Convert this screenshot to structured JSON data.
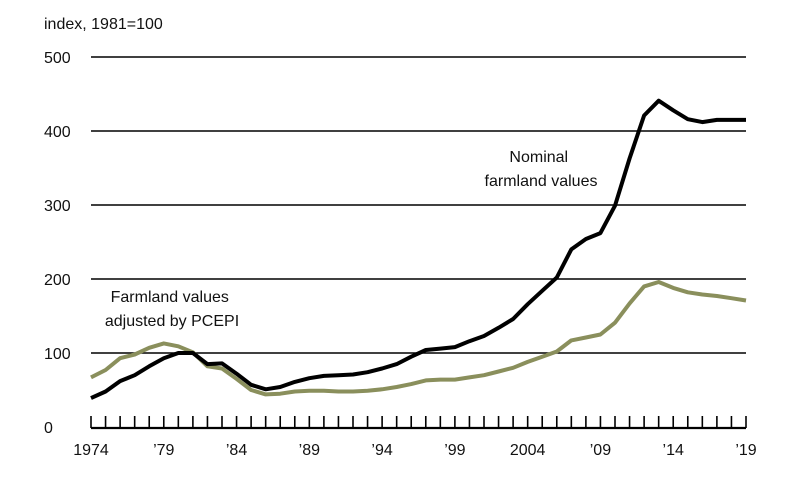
{
  "chart_data": {
    "type": "line",
    "title": "",
    "ylabel": "index, 1981=100",
    "xlabel": "",
    "ylim": [
      0,
      500
    ],
    "xlim": [
      1974,
      2019
    ],
    "yticks": [
      0,
      100,
      200,
      300,
      400,
      500
    ],
    "ytick_labels": [
      "0",
      "100",
      "200",
      "300",
      "400",
      "500"
    ],
    "xtick_positions": [
      1974,
      1979,
      1984,
      1989,
      1994,
      1999,
      2004,
      2009,
      2014,
      2019
    ],
    "xtick_labels": [
      "1974",
      "’79",
      "’84",
      "’89",
      "’94",
      "’99",
      "2004",
      "’09",
      "’14",
      "’19"
    ],
    "grid": true,
    "x": [
      1974,
      1975,
      1976,
      1977,
      1978,
      1979,
      1980,
      1981,
      1982,
      1983,
      1984,
      1985,
      1986,
      1987,
      1988,
      1989,
      1990,
      1991,
      1992,
      1993,
      1994,
      1995,
      1996,
      1997,
      1998,
      1999,
      2000,
      2001,
      2002,
      2003,
      2004,
      2005,
      2006,
      2007,
      2008,
      2009,
      2010,
      2011,
      2012,
      2013,
      2014,
      2015,
      2016,
      2017,
      2018,
      2019
    ],
    "series": [
      {
        "name": "Nominal farmland values",
        "color": "#000000",
        "values": [
          39,
          48,
          62,
          70,
          82,
          93,
          100,
          100,
          85,
          86,
          72,
          57,
          51,
          54,
          61,
          66,
          69,
          70,
          71,
          74,
          79,
          85,
          95,
          104,
          106,
          108,
          116,
          123,
          134,
          146,
          166,
          184,
          202,
          240,
          254,
          262,
          299,
          363,
          421,
          441,
          428,
          416,
          412,
          415,
          415,
          415
        ]
      },
      {
        "name": "Farmland values adjusted by PCEPI",
        "color": "#8a8f5c",
        "values": [
          67,
          77,
          93,
          98,
          107,
          113,
          109,
          101,
          82,
          79,
          65,
          50,
          44,
          45,
          48,
          49,
          49,
          48,
          48,
          49,
          51,
          54,
          58,
          63,
          64,
          64,
          67,
          70,
          75,
          80,
          88,
          95,
          102,
          117,
          121,
          125,
          141,
          167,
          190,
          196,
          188,
          182,
          179,
          177,
          174,
          171
        ]
      }
    ],
    "annotations": [
      {
        "lines": [
          "Nominal",
          "farmland values"
        ],
        "series": "Nominal farmland values"
      },
      {
        "lines": [
          "Farmland values",
          "adjusted by PCEPI"
        ],
        "series": "Farmland values adjusted by PCEPI"
      }
    ]
  }
}
